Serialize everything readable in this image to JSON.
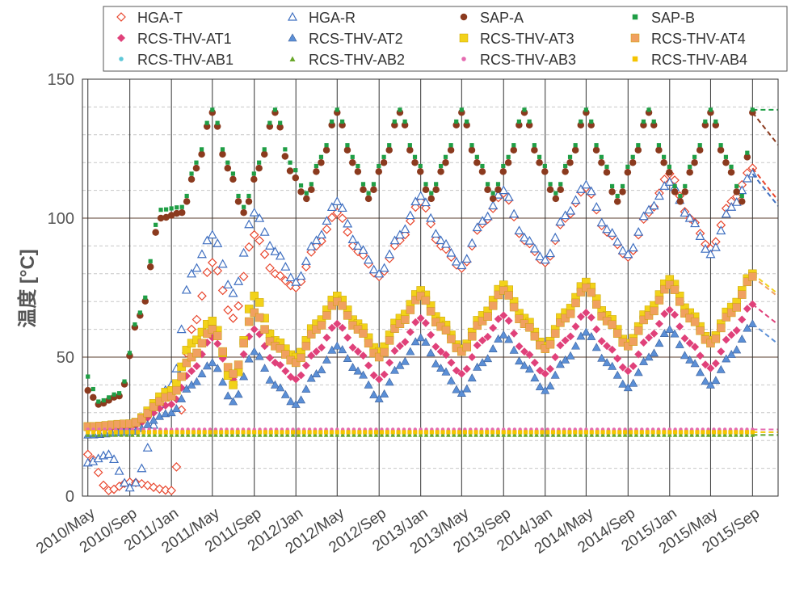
{
  "chart_data": {
    "type": "scatter",
    "title": "",
    "xlabel": "",
    "ylabel": "温度 [°C]",
    "ylim": [
      0,
      150
    ],
    "yticks": [
      0,
      50,
      100,
      150
    ],
    "x_range": [
      "2010-04-15",
      "2015-11-15"
    ],
    "x_ticks": [
      {
        "label": "2010/May",
        "date": "2010-05-01"
      },
      {
        "label": "2010/Sep",
        "date": "2010-09-01"
      },
      {
        "label": "2011/Jan",
        "date": "2011-01-01"
      },
      {
        "label": "2011/May",
        "date": "2011-05-01"
      },
      {
        "label": "2011/Sep",
        "date": "2011-09-01"
      },
      {
        "label": "2012/Jan",
        "date": "2012-01-01"
      },
      {
        "label": "2012/May",
        "date": "2012-05-01"
      },
      {
        "label": "2012/Sep",
        "date": "2012-09-01"
      },
      {
        "label": "2013/Jan",
        "date": "2013-01-01"
      },
      {
        "label": "2013/May",
        "date": "2013-05-01"
      },
      {
        "label": "2013/Sep",
        "date": "2013-09-01"
      },
      {
        "label": "2014/Jan",
        "date": "2014-01-01"
      },
      {
        "label": "2014/May",
        "date": "2014-05-01"
      },
      {
        "label": "2014/Sep",
        "date": "2014-09-01"
      },
      {
        "label": "2015/Jan",
        "date": "2015-01-01"
      },
      {
        "label": "2015/May",
        "date": "2015-05-01"
      },
      {
        "label": "2015/Sep",
        "date": "2015-09-01"
      }
    ],
    "grid": {
      "vertical": true,
      "horizontal_major": true,
      "horizontal_minor_dashed": true
    },
    "legend": {
      "position": "top",
      "columns": 4
    },
    "series": [
      {
        "name": "HGA-T",
        "color": "#e8452c",
        "marker": "diamond-open",
        "x": [
          "2010-05-01",
          "2010-07-01",
          "2010-09-01",
          "2011-01-01",
          "2011-03-01",
          "2011-05-01",
          "2011-07-01",
          "2011-09-01",
          "2011-11-01",
          "2012-01-01",
          "2012-03-01",
          "2012-05-01",
          "2012-07-01",
          "2012-09-01",
          "2012-11-01",
          "2013-01-01",
          "2013-03-01",
          "2013-05-01",
          "2013-07-01",
          "2013-09-01",
          "2013-11-01",
          "2014-01-01",
          "2014-03-01",
          "2014-05-01",
          "2014-07-01",
          "2014-09-01",
          "2014-11-01",
          "2015-01-01",
          "2015-03-01",
          "2015-05-01",
          "2015-07-01",
          "2015-09-01"
        ],
        "y": [
          15,
          2,
          5,
          2,
          60,
          84,
          64,
          94,
          80,
          75,
          90,
          102,
          88,
          79,
          92,
          106,
          90,
          82,
          98,
          109,
          92,
          84,
          100,
          111,
          95,
          86,
          102,
          116,
          100,
          89,
          106,
          118
        ]
      },
      {
        "name": "HGA-R",
        "color": "#3f6fc0",
        "marker": "triangle-open",
        "x": [
          "2010-05-01",
          "2010-07-01",
          "2010-09-01",
          "2011-01-01",
          "2011-03-01",
          "2011-05-01",
          "2011-07-01",
          "2011-09-01",
          "2011-11-01",
          "2012-01-01",
          "2012-03-01",
          "2012-05-01",
          "2012-07-01",
          "2012-09-01",
          "2012-11-01",
          "2013-01-01",
          "2013-03-01",
          "2013-05-01",
          "2013-07-01",
          "2013-09-01",
          "2013-11-01",
          "2014-01-01",
          "2014-03-01",
          "2014-05-01",
          "2014-07-01",
          "2014-09-01",
          "2014-11-01",
          "2015-01-01",
          "2015-03-01",
          "2015-05-01",
          "2015-07-01",
          "2015-09-01"
        ],
        "y": [
          12,
          15,
          3,
          40,
          80,
          94,
          73,
          102,
          88,
          77,
          92,
          106,
          90,
          80,
          94,
          108,
          92,
          83,
          99,
          110,
          93,
          85,
          101,
          112,
          96,
          87,
          103,
          113,
          100,
          87,
          104,
          116
        ]
      },
      {
        "name": "SAP-A",
        "color": "#8b3a1e",
        "marker": "circle",
        "x": [
          "2010-05-01",
          "2010-06-01",
          "2010-08-01",
          "2010-10-01",
          "2010-12-01",
          "2011-02-01",
          "2011-03-15",
          "2011-05-01",
          "2011-06-15",
          "2011-08-01",
          "2011-09-15",
          "2011-11-01",
          "2011-12-15",
          "2012-02-01",
          "2012-03-15",
          "2012-05-01",
          "2012-06-15",
          "2012-08-01",
          "2012-09-15",
          "2012-11-01",
          "2012-12-15",
          "2013-02-01",
          "2013-03-15",
          "2013-05-01",
          "2013-06-15",
          "2013-08-01",
          "2013-09-15",
          "2013-11-01",
          "2013-12-15",
          "2014-02-01",
          "2014-03-15",
          "2014-05-01",
          "2014-06-15",
          "2014-08-01",
          "2014-09-15",
          "2014-11-01",
          "2014-12-15",
          "2015-02-01",
          "2015-03-15",
          "2015-05-01",
          "2015-06-15",
          "2015-08-01",
          "2015-09-01"
        ],
        "y": [
          38,
          33,
          36,
          65,
          100,
          102,
          118,
          138,
          118,
          102,
          118,
          138,
          117,
          107,
          120,
          138,
          120,
          107,
          120,
          138,
          120,
          107,
          120,
          138,
          120,
          107,
          120,
          138,
          120,
          107,
          120,
          138,
          120,
          106,
          120,
          138,
          120,
          106,
          120,
          138,
          120,
          106,
          138
        ]
      },
      {
        "name": "SAP-B",
        "color": "#1f9e45",
        "marker": "square-small",
        "x": [
          "2010-05-01",
          "2010-06-01",
          "2010-08-01",
          "2010-10-01",
          "2010-12-01",
          "2011-02-01",
          "2011-03-15",
          "2011-05-01",
          "2011-06-15",
          "2011-08-01",
          "2011-09-15",
          "2011-11-01",
          "2011-12-15",
          "2012-02-01",
          "2012-03-15",
          "2012-05-01",
          "2012-06-15",
          "2012-08-01",
          "2012-09-15",
          "2012-11-01",
          "2012-12-15",
          "2013-02-01",
          "2013-03-15",
          "2013-05-01",
          "2013-06-15",
          "2013-08-01",
          "2013-09-15",
          "2013-11-01",
          "2013-12-15",
          "2014-02-01",
          "2014-03-15",
          "2014-05-01",
          "2014-06-15",
          "2014-08-01",
          "2014-09-15",
          "2014-11-01",
          "2014-12-15",
          "2015-02-01",
          "2015-03-15",
          "2015-05-01",
          "2015-06-15",
          "2015-08-01",
          "2015-09-01"
        ],
        "y": [
          43,
          34,
          37,
          66,
          103,
          104,
          120,
          139,
          120,
          104,
          120,
          139,
          120,
          109,
          122,
          139,
          122,
          109,
          122,
          139,
          122,
          109,
          122,
          139,
          122,
          109,
          122,
          139,
          122,
          109,
          122,
          139,
          122,
          108,
          122,
          139,
          122,
          108,
          122,
          139,
          122,
          108,
          139
        ]
      },
      {
        "name": "RCS-THV-AT1",
        "color": "#e0417a",
        "marker": "diamond",
        "x": [
          "2010-05-01",
          "2010-09-01",
          "2011-01-01",
          "2011-03-01",
          "2011-05-01",
          "2011-07-01",
          "2011-09-01",
          "2011-11-01",
          "2012-01-01",
          "2012-03-01",
          "2012-05-01",
          "2012-07-01",
          "2012-09-01",
          "2012-11-01",
          "2013-01-01",
          "2013-03-01",
          "2013-05-01",
          "2013-07-01",
          "2013-09-01",
          "2013-11-01",
          "2014-01-01",
          "2014-03-01",
          "2014-05-01",
          "2014-07-01",
          "2014-09-01",
          "2014-11-01",
          "2015-01-01",
          "2015-03-01",
          "2015-05-01",
          "2015-07-01",
          "2015-09-01"
        ],
        "y": [
          24,
          25,
          33,
          45,
          57,
          42,
          60,
          48,
          42,
          52,
          62,
          52,
          42,
          54,
          64,
          52,
          44,
          56,
          65,
          52,
          44,
          56,
          66,
          54,
          45,
          57,
          67,
          55,
          46,
          58,
          69
        ]
      },
      {
        "name": "RCS-THV-AT2",
        "color": "#5b8fd6",
        "marker": "triangle",
        "x": [
          "2010-05-01",
          "2010-09-01",
          "2011-01-01",
          "2011-03-01",
          "2011-05-01",
          "2011-07-01",
          "2011-09-01",
          "2011-11-01",
          "2012-01-01",
          "2012-03-01",
          "2012-05-01",
          "2012-07-01",
          "2012-09-01",
          "2012-11-01",
          "2013-01-01",
          "2013-03-01",
          "2013-05-01",
          "2013-07-01",
          "2013-09-01",
          "2013-11-01",
          "2014-01-01",
          "2014-03-01",
          "2014-05-01",
          "2014-07-01",
          "2014-09-01",
          "2014-11-01",
          "2015-01-01",
          "2015-03-01",
          "2015-05-01",
          "2015-07-01",
          "2015-09-01"
        ],
        "y": [
          22,
          23,
          30,
          40,
          48,
          34,
          52,
          40,
          33,
          44,
          54,
          45,
          35,
          47,
          57,
          46,
          37,
          48,
          58,
          47,
          38,
          49,
          59,
          48,
          39,
          50,
          60,
          49,
          40,
          51,
          62
        ]
      },
      {
        "name": "RCS-THV-AT3",
        "color": "#f2d21a",
        "marker": "square",
        "x": [
          "2010-05-01",
          "2010-09-01",
          "2011-01-01",
          "2011-03-01",
          "2011-05-01",
          "2011-07-01",
          "2011-09-01",
          "2011-11-01",
          "2012-01-01",
          "2012-03-01",
          "2012-05-01",
          "2012-07-01",
          "2012-09-01",
          "2012-11-01",
          "2013-01-01",
          "2013-03-01",
          "2013-05-01",
          "2013-07-01",
          "2013-09-01",
          "2013-11-01",
          "2014-01-01",
          "2014-03-01",
          "2014-05-01",
          "2014-07-01",
          "2014-09-01",
          "2014-11-01",
          "2015-01-01",
          "2015-03-01",
          "2015-05-01",
          "2015-07-01",
          "2015-09-01"
        ],
        "y": [
          25,
          26,
          38,
          55,
          63,
          40,
          72,
          56,
          50,
          62,
          72,
          62,
          52,
          64,
          74,
          63,
          53,
          65,
          76,
          64,
          54,
          66,
          77,
          65,
          55,
          67,
          78,
          66,
          56,
          68,
          80
        ]
      },
      {
        "name": "RCS-THV-AT4",
        "color": "#f0a060",
        "marker": "square",
        "x": [
          "2010-05-01",
          "2010-09-01",
          "2011-01-01",
          "2011-03-01",
          "2011-05-01",
          "2011-07-01",
          "2011-09-01",
          "2011-11-01",
          "2012-01-01",
          "2012-03-01",
          "2012-05-01",
          "2012-07-01",
          "2012-09-01",
          "2012-11-01",
          "2013-01-01",
          "2013-03-01",
          "2013-05-01",
          "2013-07-01",
          "2013-09-01",
          "2013-11-01",
          "2014-01-01",
          "2014-03-01",
          "2014-05-01",
          "2014-07-01",
          "2014-09-01",
          "2014-11-01",
          "2015-01-01",
          "2015-03-01",
          "2015-05-01",
          "2015-07-01",
          "2015-09-01"
        ],
        "y": [
          25,
          26,
          36,
          50,
          60,
          44,
          66,
          54,
          48,
          60,
          70,
          60,
          50,
          62,
          72,
          61,
          52,
          63,
          74,
          62,
          53,
          64,
          75,
          63,
          54,
          65,
          76,
          64,
          55,
          66,
          79
        ]
      },
      {
        "name": "RCS-THV-AB1",
        "color": "#5ec8d8",
        "marker": "dot",
        "x": [
          "2010-05-01",
          "2011-01-01",
          "2011-09-01",
          "2012-05-01",
          "2013-01-01",
          "2013-09-01",
          "2014-05-01",
          "2015-01-01",
          "2015-09-01"
        ],
        "y": [
          22,
          22,
          22,
          22,
          22,
          22,
          22,
          22,
          22
        ]
      },
      {
        "name": "RCS-THV-AB2",
        "color": "#6aa82a",
        "marker": "triangle-small",
        "x": [
          "2010-05-01",
          "2011-01-01",
          "2011-09-01",
          "2012-05-01",
          "2013-01-01",
          "2013-09-01",
          "2014-05-01",
          "2015-01-01",
          "2015-09-01"
        ],
        "y": [
          22,
          22,
          22,
          22,
          22,
          22,
          22,
          22,
          22
        ]
      },
      {
        "name": "RCS-THV-AB3",
        "color": "#e56bb0",
        "marker": "dot",
        "x": [
          "2010-05-01",
          "2011-01-01",
          "2011-09-01",
          "2012-05-01",
          "2013-01-01",
          "2013-09-01",
          "2014-05-01",
          "2015-01-01",
          "2015-09-01"
        ],
        "y": [
          24,
          24,
          24,
          24,
          24,
          24,
          24,
          24,
          24
        ]
      },
      {
        "name": "RCS-THV-AB4",
        "color": "#f5c400",
        "marker": "square-small",
        "x": [
          "2010-05-01",
          "2011-01-01",
          "2011-09-01",
          "2012-05-01",
          "2013-01-01",
          "2013-09-01",
          "2014-05-01",
          "2015-01-01",
          "2015-09-01"
        ],
        "y": [
          23,
          23,
          23,
          23,
          23,
          23,
          23,
          23,
          23
        ]
      }
    ]
  }
}
